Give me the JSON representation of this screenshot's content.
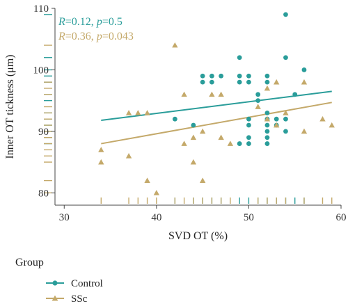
{
  "chart_data": {
    "type": "scatter",
    "xlabel": "SVD OT (%)",
    "ylabel": "Inner OT tickness (μm)",
    "xlim": [
      29,
      60
    ],
    "ylim": [
      78,
      110
    ],
    "xticks": [
      30,
      40,
      50,
      60
    ],
    "yticks": [
      80,
      90,
      100,
      110
    ],
    "grid": false,
    "rug": true,
    "legend": {
      "title": "Group",
      "placement": "bottom-left",
      "entries": [
        "Control",
        "SSc"
      ]
    },
    "series": [
      {
        "name": "Control",
        "color": "#2a9d9a",
        "marker": "circle",
        "regression": {
          "R": "0.12",
          "p": "0.5",
          "line": [
            [
              34,
              91.8
            ],
            [
              59,
              96.5
            ]
          ]
        },
        "stat_line": {
          "r_label": "R",
          "r_value": "=0.12, ",
          "p_label": "p",
          "p_value": "=0.5"
        },
        "points": [
          [
            42,
            92
          ],
          [
            44,
            91
          ],
          [
            45,
            99
          ],
          [
            45,
            98
          ],
          [
            46,
            99
          ],
          [
            46,
            98
          ],
          [
            47,
            99
          ],
          [
            49,
            102
          ],
          [
            49,
            99
          ],
          [
            49,
            98
          ],
          [
            49,
            88
          ],
          [
            50,
            99
          ],
          [
            50,
            98
          ],
          [
            50,
            92
          ],
          [
            50,
            91
          ],
          [
            50,
            89
          ],
          [
            50,
            88
          ],
          [
            51,
            96
          ],
          [
            51,
            95
          ],
          [
            52,
            99
          ],
          [
            52,
            98
          ],
          [
            52,
            93
          ],
          [
            52,
            92
          ],
          [
            52,
            91
          ],
          [
            52,
            90
          ],
          [
            52,
            89
          ],
          [
            52,
            88
          ],
          [
            53,
            92
          ],
          [
            53,
            91
          ],
          [
            54,
            109
          ],
          [
            54,
            102
          ],
          [
            54,
            92
          ],
          [
            54,
            90
          ],
          [
            55,
            96
          ],
          [
            56,
            100
          ]
        ]
      },
      {
        "name": "SSc",
        "color": "#c4a96a",
        "marker": "triangle",
        "regression": {
          "R": "0.36",
          "p": "0.043",
          "line": [
            [
              34,
              88
            ],
            [
              59,
              94.7
            ]
          ]
        },
        "stat_line": {
          "r_label": "R",
          "r_value": "=0.36, ",
          "p_label": "p",
          "p_value": "=0.043"
        },
        "points": [
          [
            34,
            87
          ],
          [
            34,
            85
          ],
          [
            37,
            93
          ],
          [
            37,
            86
          ],
          [
            38,
            93
          ],
          [
            39,
            93
          ],
          [
            39,
            82
          ],
          [
            40,
            80
          ],
          [
            42,
            104
          ],
          [
            43,
            96
          ],
          [
            43,
            88
          ],
          [
            44,
            89
          ],
          [
            44,
            85
          ],
          [
            45,
            90
          ],
          [
            45,
            82
          ],
          [
            46,
            96
          ],
          [
            47,
            96
          ],
          [
            47,
            89
          ],
          [
            48,
            88
          ],
          [
            51,
            94
          ],
          [
            52,
            97
          ],
          [
            52,
            92
          ],
          [
            53,
            98
          ],
          [
            53,
            91
          ],
          [
            54,
            93
          ],
          [
            56,
            98
          ],
          [
            56,
            90
          ],
          [
            58,
            92
          ],
          [
            59,
            91
          ]
        ]
      }
    ]
  }
}
